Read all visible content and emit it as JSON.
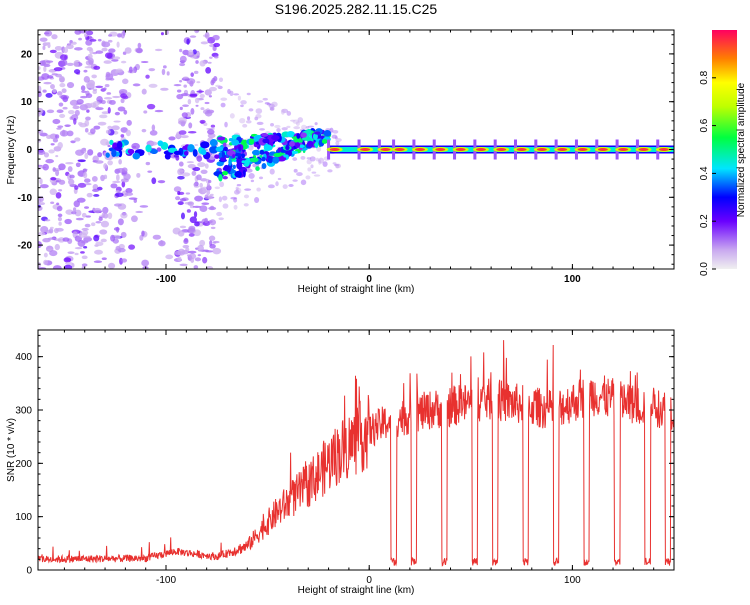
{
  "title": "S196.2025.282.11.15.C25",
  "chart_data": [
    {
      "type": "heatmap",
      "id": "spectrogram",
      "xlabel": "Height of straight line (km)",
      "ylabel": "Frequency (Hz)",
      "xlim": [
        -163,
        150
      ],
      "ylim": [
        -25,
        25
      ],
      "xticks": [
        -100,
        0,
        100
      ],
      "yticks": [
        -20,
        -10,
        0,
        10,
        20
      ],
      "colorbar": {
        "label": "Normalized spectral amplitude",
        "range": [
          0,
          1
        ],
        "ticks": [
          0.0,
          0.2,
          0.4,
          0.6,
          0.8
        ]
      },
      "description_points": {
        "noise_region_x": [
          -163,
          -75
        ],
        "transition_region_x": [
          -75,
          -20
        ],
        "tone_region_x": [
          -20,
          150
        ],
        "tone_frequency": 0,
        "tone_pulse_centers_x": [
          -20,
          -5,
          5,
          12,
          22,
          32,
          42,
          52,
          62,
          72,
          82,
          92,
          102,
          112,
          122,
          132,
          142
        ]
      }
    },
    {
      "type": "line",
      "id": "snr",
      "xlabel": "Height of straight line (km)",
      "ylabel": "SNR (10 * v/v)",
      "xlim": [
        -163,
        150
      ],
      "ylim": [
        0,
        450
      ],
      "xticks": [
        -100,
        0,
        100
      ],
      "yticks": [
        0,
        100,
        200,
        300,
        400
      ],
      "series": [
        {
          "name": "SNR",
          "color": "#e8312f",
          "keypoints": [
            {
              "x": -163,
              "y": 20
            },
            {
              "x": -110,
              "y": 22
            },
            {
              "x": -95,
              "y": 35
            },
            {
              "x": -75,
              "y": 25
            },
            {
              "x": -60,
              "y": 45
            },
            {
              "x": -45,
              "y": 110
            },
            {
              "x": -30,
              "y": 160
            },
            {
              "x": -15,
              "y": 220
            },
            {
              "x": 0,
              "y": 260
            },
            {
              "x": 10,
              "y": 280
            },
            {
              "x": 30,
              "y": 300
            },
            {
              "x": 60,
              "y": 320
            },
            {
              "x": 90,
              "y": 300
            },
            {
              "x": 110,
              "y": 330
            },
            {
              "x": 130,
              "y": 310
            },
            {
              "x": 150,
              "y": 300
            }
          ],
          "dropouts_x": [
            12,
            22,
            37,
            52,
            62,
            77,
            92,
            107,
            122,
            137,
            147
          ]
        }
      ]
    }
  ]
}
